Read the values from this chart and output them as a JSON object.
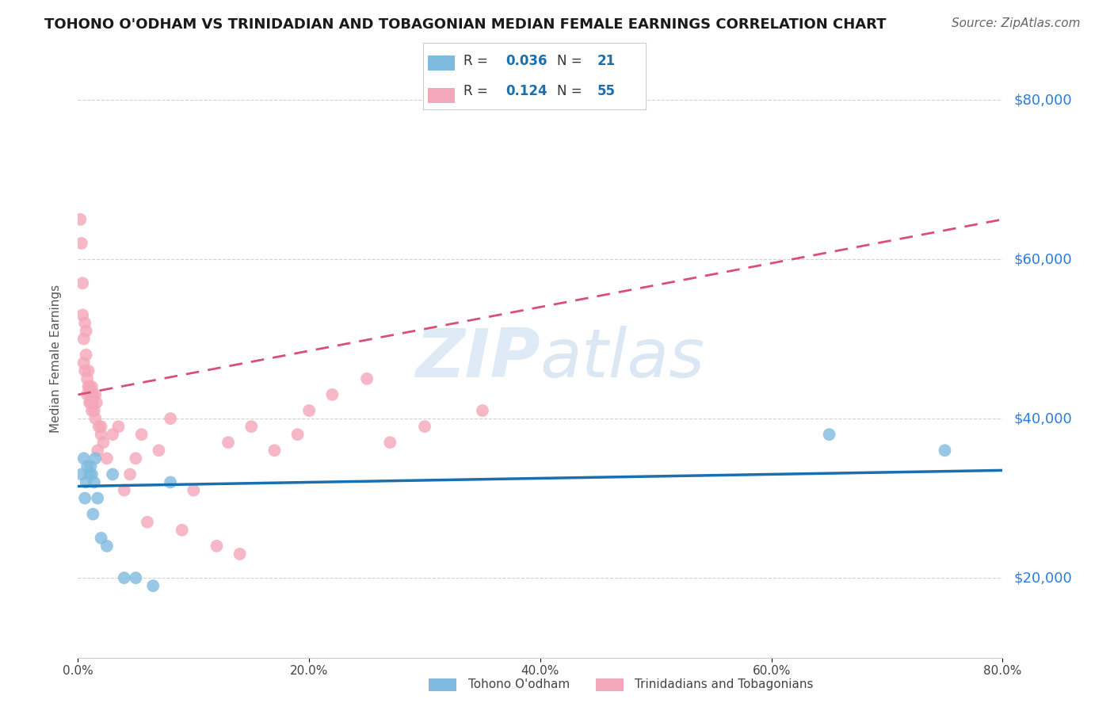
{
  "title": "TOHONO O'ODHAM VS TRINIDADIAN AND TOBAGONIAN MEDIAN FEMALE EARNINGS CORRELATION CHART",
  "source": "Source: ZipAtlas.com",
  "ylabel": "Median Female Earnings",
  "xlabel_ticks": [
    "0.0%",
    "20.0%",
    "40.0%",
    "60.0%",
    "80.0%"
  ],
  "xlabel_vals": [
    0,
    20,
    40,
    60,
    80
  ],
  "ylabel_ticks": [
    "$20,000",
    "$40,000",
    "$60,000",
    "$80,000"
  ],
  "ylabel_vals": [
    20000,
    40000,
    60000,
    80000
  ],
  "blue_R": 0.036,
  "blue_N": 21,
  "pink_R": 0.124,
  "pink_N": 55,
  "blue_label": "Tohono O'odham",
  "pink_label": "Trinidadians and Tobagonians",
  "blue_color": "#7fbbdf",
  "pink_color": "#f4a7b9",
  "blue_line_color": "#1a6faf",
  "pink_line_color": "#d94f7a",
  "watermark_zip": "ZIP",
  "watermark_atlas": "atlas",
  "watermark_color_zip": "#c8dff0",
  "watermark_color_atlas": "#b0c8e0",
  "blue_scatter_x": [
    0.3,
    0.5,
    0.6,
    0.7,
    0.8,
    1.0,
    1.1,
    1.2,
    1.3,
    1.4,
    1.5,
    1.7,
    2.0,
    2.5,
    3.0,
    4.0,
    5.0,
    6.5,
    8.0,
    65.0,
    75.0
  ],
  "blue_scatter_y": [
    33000,
    35000,
    30000,
    32000,
    34000,
    33000,
    34000,
    33000,
    28000,
    32000,
    35000,
    30000,
    25000,
    24000,
    33000,
    20000,
    20000,
    19000,
    32000,
    38000,
    36000
  ],
  "pink_scatter_x": [
    0.2,
    0.3,
    0.4,
    0.4,
    0.5,
    0.5,
    0.6,
    0.6,
    0.7,
    0.7,
    0.8,
    0.8,
    0.9,
    0.9,
    1.0,
    1.0,
    1.1,
    1.1,
    1.2,
    1.2,
    1.3,
    1.3,
    1.4,
    1.5,
    1.5,
    1.6,
    1.7,
    1.8,
    2.0,
    2.0,
    2.2,
    2.5,
    3.0,
    3.5,
    4.0,
    4.5,
    5.0,
    5.5,
    6.0,
    7.0,
    8.0,
    9.0,
    10.0,
    12.0,
    13.0,
    14.0,
    15.0,
    17.0,
    19.0,
    20.0,
    22.0,
    25.0,
    27.0,
    30.0,
    35.0
  ],
  "pink_scatter_y": [
    65000,
    62000,
    57000,
    53000,
    50000,
    47000,
    52000,
    46000,
    51000,
    48000,
    45000,
    43000,
    46000,
    44000,
    44000,
    42000,
    43000,
    42000,
    44000,
    41000,
    43000,
    42000,
    41000,
    43000,
    40000,
    42000,
    36000,
    39000,
    39000,
    38000,
    37000,
    35000,
    38000,
    39000,
    31000,
    33000,
    35000,
    38000,
    27000,
    36000,
    40000,
    26000,
    31000,
    24000,
    37000,
    23000,
    39000,
    36000,
    38000,
    41000,
    43000,
    45000,
    37000,
    39000,
    41000
  ],
  "xlim": [
    0,
    80
  ],
  "ylim": [
    10000,
    85000
  ],
  "blue_line_x": [
    0,
    80
  ],
  "blue_line_y": [
    31500,
    33500
  ],
  "pink_line_x": [
    0,
    80
  ],
  "pink_line_y": [
    43000,
    65000
  ],
  "title_fontsize": 13,
  "source_fontsize": 11,
  "legend_fontsize": 13,
  "rn_value_color": "#1a6faf",
  "rn_label_color": "#333333"
}
